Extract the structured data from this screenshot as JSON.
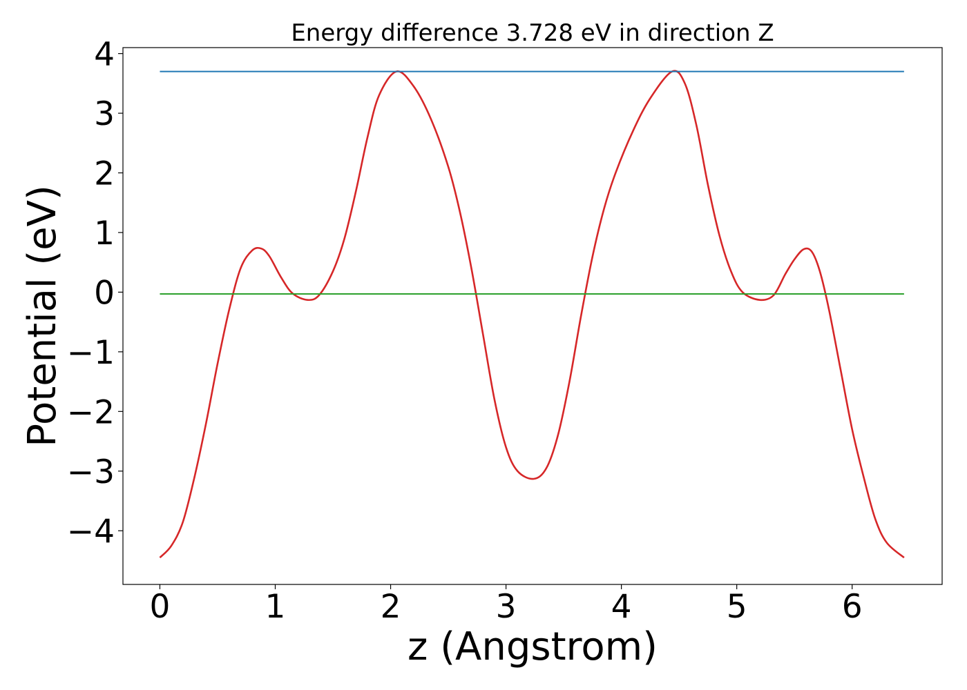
{
  "chart_data": {
    "type": "line",
    "title": "Energy difference 3.728 eV in direction Z",
    "xlabel": "z (Angstrom)",
    "ylabel": "Potential (eV)",
    "xlim": [
      -0.32,
      6.78
    ],
    "ylim": [
      -4.9,
      4.1
    ],
    "xticks": [
      0,
      1,
      2,
      3,
      4,
      5,
      6
    ],
    "xtick_labels": [
      "0",
      "1",
      "2",
      "3",
      "4",
      "5",
      "6"
    ],
    "yticks": [
      -4,
      -3,
      -2,
      -1,
      0,
      1,
      2,
      3,
      4
    ],
    "ytick_labels": [
      "−4",
      "−3",
      "−2",
      "−1",
      "0",
      "1",
      "2",
      "3",
      "4"
    ],
    "grid": false,
    "series": [
      {
        "color": "#d62728",
        "x": [
          0.0,
          0.1,
          0.2,
          0.3,
          0.4,
          0.5,
          0.6,
          0.7,
          0.8,
          0.88,
          0.95,
          1.05,
          1.15,
          1.28,
          1.38,
          1.5,
          1.6,
          1.7,
          1.8,
          1.9,
          2.05,
          2.2,
          2.35,
          2.5,
          2.6,
          2.7,
          2.8,
          2.9,
          3.0,
          3.1,
          3.24,
          3.35,
          3.45,
          3.55,
          3.65,
          3.75,
          3.85,
          3.95,
          4.1,
          4.25,
          4.44,
          4.55,
          4.65,
          4.75,
          4.85,
          4.95,
          5.05,
          5.2,
          5.32,
          5.42,
          5.5,
          5.58,
          5.65,
          5.72,
          5.8,
          5.9,
          6.0,
          6.1,
          6.2,
          6.3,
          6.45
        ],
        "y": [
          -4.45,
          -4.25,
          -3.85,
          -3.1,
          -2.2,
          -1.2,
          -0.3,
          0.4,
          0.7,
          0.73,
          0.6,
          0.25,
          -0.02,
          -0.13,
          -0.05,
          0.35,
          0.9,
          1.7,
          2.6,
          3.3,
          3.7,
          3.45,
          2.9,
          2.1,
          1.35,
          0.4,
          -0.7,
          -1.8,
          -2.6,
          -3.0,
          -3.13,
          -2.95,
          -2.4,
          -1.5,
          -0.4,
          0.6,
          1.4,
          2.0,
          2.7,
          3.25,
          3.7,
          3.5,
          2.8,
          1.8,
          0.95,
          0.35,
          0.0,
          -0.13,
          -0.05,
          0.3,
          0.55,
          0.72,
          0.68,
          0.35,
          -0.3,
          -1.3,
          -2.3,
          -3.1,
          -3.8,
          -4.2,
          -4.45
        ]
      },
      {
        "color": "#1f77b4",
        "x": [
          0.0,
          6.45
        ],
        "y": [
          3.7,
          3.7
        ]
      },
      {
        "color": "#2ca02c",
        "x": [
          0.0,
          6.45
        ],
        "y": [
          -0.03,
          -0.03
        ]
      }
    ]
  }
}
